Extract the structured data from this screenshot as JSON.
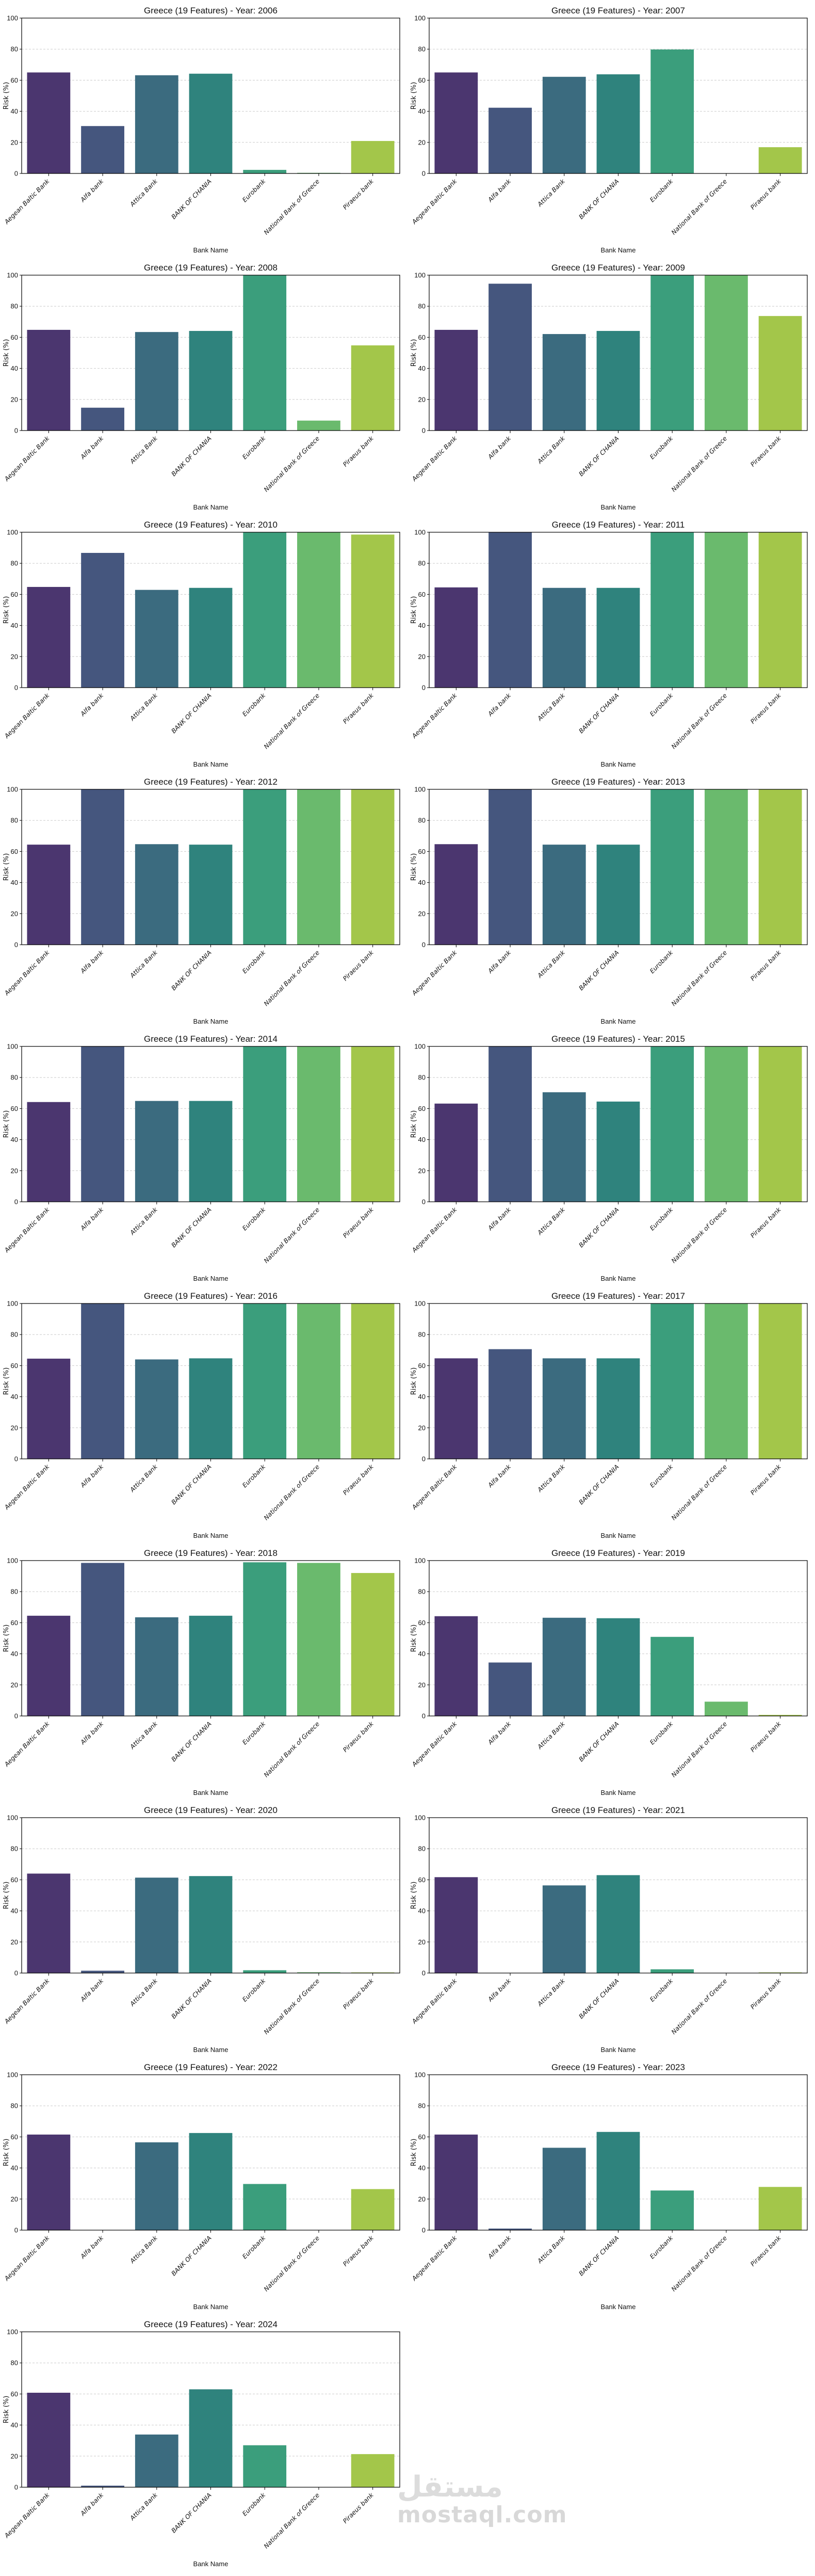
{
  "figure": {
    "watermark": {
      "glyph": "مستقل",
      "text": "mostaql.com"
    }
  },
  "chart_data": {
    "type": "bar",
    "layout": "grid of small multiples, 2 columns",
    "shared": {
      "categories": [
        "Aegean Baltic Bank",
        "Alfa bank",
        "Attica Bank",
        "BANK OF CHANIA",
        "Eurobank",
        "National Bank of Greece",
        "Piraeus bank"
      ],
      "colors": [
        "#4b366f",
        "#45567e",
        "#3b6b7f",
        "#2f837d",
        "#3b9e7c",
        "#6aba6d",
        "#a3c64a"
      ],
      "xlabel": "Bank Name",
      "ylabel": "Risk (%)",
      "ylim": [
        0,
        100
      ],
      "yticks": [
        0,
        20,
        40,
        60,
        80,
        100
      ],
      "grid": "horizontal dashed",
      "legend": "none"
    },
    "charts": [
      {
        "title": "Greece (19 Features) - Year: 2006",
        "year": 2006,
        "values": [
          65.0,
          30.5,
          63.2,
          64.2,
          2.3,
          0.4,
          20.9
        ]
      },
      {
        "title": "Greece (19 Features) - Year: 2007",
        "year": 2007,
        "values": [
          65.0,
          42.3,
          62.2,
          63.8,
          79.8,
          0.0,
          16.9
        ]
      },
      {
        "title": "Greece (19 Features) - Year: 2008",
        "year": 2008,
        "values": [
          64.8,
          14.7,
          63.4,
          64.1,
          100.0,
          6.4,
          54.8
        ]
      },
      {
        "title": "Greece (19 Features) - Year: 2009",
        "year": 2009,
        "values": [
          64.8,
          94.5,
          62.1,
          64.1,
          100.0,
          100.0,
          73.7
        ]
      },
      {
        "title": "Greece (19 Features) - Year: 2010",
        "year": 2010,
        "values": [
          64.8,
          86.7,
          62.9,
          64.2,
          100.0,
          100.0,
          98.5
        ]
      },
      {
        "title": "Greece (19 Features) - Year: 2011",
        "year": 2011,
        "values": [
          64.5,
          100.0,
          64.2,
          64.2,
          100.0,
          100.0,
          100.0
        ]
      },
      {
        "title": "Greece (19 Features) - Year: 2012",
        "year": 2012,
        "values": [
          64.4,
          100.0,
          64.7,
          64.4,
          100.0,
          100.0,
          100.0
        ]
      },
      {
        "title": "Greece (19 Features) - Year: 2013",
        "year": 2013,
        "values": [
          64.7,
          100.0,
          64.4,
          64.4,
          100.0,
          100.0,
          100.0
        ]
      },
      {
        "title": "Greece (19 Features) - Year: 2014",
        "year": 2014,
        "values": [
          64.2,
          100.0,
          64.9,
          64.9,
          100.0,
          100.0,
          100.0
        ]
      },
      {
        "title": "Greece (19 Features) - Year: 2015",
        "year": 2015,
        "values": [
          63.2,
          100.0,
          70.5,
          64.5,
          100.0,
          100.0,
          100.0
        ]
      },
      {
        "title": "Greece (19 Features) - Year: 2016",
        "year": 2016,
        "values": [
          64.5,
          100.0,
          64.0,
          64.7,
          100.0,
          100.0,
          100.0
        ]
      },
      {
        "title": "Greece (19 Features) - Year: 2017",
        "year": 2017,
        "values": [
          64.7,
          70.6,
          64.7,
          64.7,
          100.0,
          100.0,
          100.0
        ]
      },
      {
        "title": "Greece (19 Features) - Year: 2018",
        "year": 2018,
        "values": [
          64.5,
          98.5,
          63.5,
          64.5,
          98.9,
          98.5,
          92.0
        ]
      },
      {
        "title": "Greece (19 Features) - Year: 2019",
        "year": 2019,
        "values": [
          64.2,
          34.4,
          63.2,
          62.9,
          50.9,
          9.2,
          0.7
        ]
      },
      {
        "title": "Greece (19 Features) - Year: 2020",
        "year": 2020,
        "values": [
          64.0,
          1.5,
          61.4,
          62.4,
          1.8,
          0.5,
          0.4
        ]
      },
      {
        "title": "Greece (19 Features) - Year: 2021",
        "year": 2021,
        "values": [
          61.7,
          0.0,
          56.4,
          63.0,
          2.4,
          0.0,
          0.4
        ]
      },
      {
        "title": "Greece (19 Features) - Year: 2022",
        "year": 2022,
        "values": [
          61.5,
          0.0,
          56.5,
          62.5,
          29.7,
          0.0,
          26.4
        ]
      },
      {
        "title": "Greece (19 Features) - Year: 2023",
        "year": 2023,
        "values": [
          61.5,
          1.0,
          53.0,
          63.2,
          25.5,
          0.0,
          27.8
        ]
      },
      {
        "title": "Greece (19 Features) - Year: 2024",
        "year": 2024,
        "values": [
          60.8,
          1.0,
          33.9,
          63.0,
          27.0,
          0.0,
          21.3
        ]
      }
    ]
  }
}
